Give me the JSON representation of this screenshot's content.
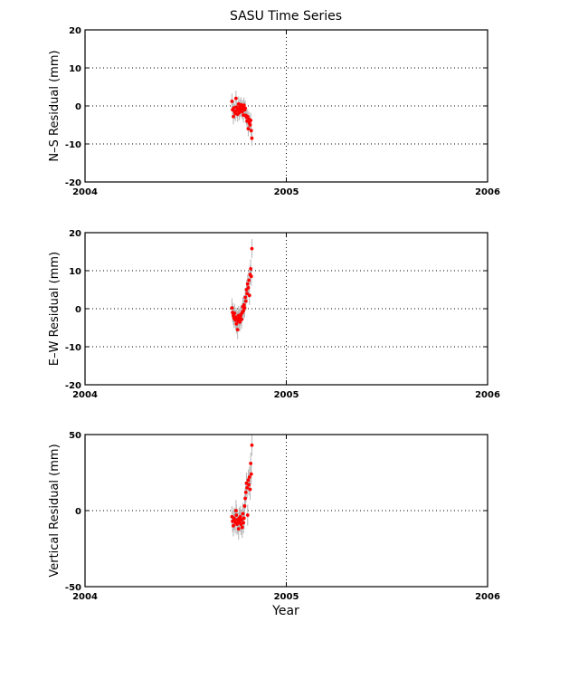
{
  "chart_data": {
    "title": "SASU Time Series",
    "xlabel": "Year",
    "type": "scatter",
    "panels": [
      {
        "type": "scatter",
        "ylabel": "N–S Residual (mm)",
        "xlim": [
          2004,
          2006
        ],
        "ylim": [
          -20,
          20
        ],
        "xticks": [
          2004,
          2005,
          2006
        ],
        "yticks": [
          -20,
          -10,
          0,
          10,
          20
        ],
        "grid": "dotted",
        "points": [
          {
            "x": 2004.73,
            "y": 1.2,
            "err": 2.0
          },
          {
            "x": 2004.733,
            "y": -1.0,
            "err": 2.0
          },
          {
            "x": 2004.737,
            "y": -2.8,
            "err": 2.0
          },
          {
            "x": 2004.74,
            "y": -0.5,
            "err": 2.0
          },
          {
            "x": 2004.743,
            "y": -1.5,
            "err": 2.0
          },
          {
            "x": 2004.747,
            "y": -2.0,
            "err": 2.0
          },
          {
            "x": 2004.75,
            "y": 2.0,
            "err": 2.0
          },
          {
            "x": 2004.752,
            "y": -0.3,
            "err": 2.0
          },
          {
            "x": 2004.755,
            "y": -1.2,
            "err": 2.0
          },
          {
            "x": 2004.758,
            "y": -2.2,
            "err": 2.0
          },
          {
            "x": 2004.76,
            "y": -0.8,
            "err": 2.0
          },
          {
            "x": 2004.763,
            "y": 0.5,
            "err": 2.0
          },
          {
            "x": 2004.766,
            "y": -1.8,
            "err": 2.0
          },
          {
            "x": 2004.769,
            "y": -0.2,
            "err": 2.0
          },
          {
            "x": 2004.772,
            "y": -1.0,
            "err": 2.0
          },
          {
            "x": 2004.775,
            "y": 0.3,
            "err": 2.0
          },
          {
            "x": 2004.778,
            "y": -0.8,
            "err": 2.0
          },
          {
            "x": 2004.781,
            "y": -1.5,
            "err": 2.0
          },
          {
            "x": 2004.784,
            "y": -0.4,
            "err": 2.0
          },
          {
            "x": 2004.787,
            "y": -2.4,
            "err": 2.0
          },
          {
            "x": 2004.79,
            "y": 0.2,
            "err": 2.0
          },
          {
            "x": 2004.793,
            "y": -1.0,
            "err": 2.0
          },
          {
            "x": 2004.796,
            "y": -0.6,
            "err": 2.0
          },
          {
            "x": 2004.799,
            "y": -2.5,
            "err": 2.0
          },
          {
            "x": 2004.802,
            "y": -3.0,
            "err": 2.0
          },
          {
            "x": 2004.805,
            "y": -4.0,
            "err": 2.0
          },
          {
            "x": 2004.808,
            "y": -2.8,
            "err": 2.0
          },
          {
            "x": 2004.811,
            "y": -6.0,
            "err": 2.0
          },
          {
            "x": 2004.814,
            "y": -3.5,
            "err": 2.0
          },
          {
            "x": 2004.817,
            "y": -4.5,
            "err": 2.0
          },
          {
            "x": 2004.82,
            "y": -5.0,
            "err": 2.0
          },
          {
            "x": 2004.823,
            "y": -3.8,
            "err": 2.0
          },
          {
            "x": 2004.826,
            "y": -6.5,
            "err": 2.0
          },
          {
            "x": 2004.829,
            "y": -8.5,
            "err": 2.0
          }
        ]
      },
      {
        "type": "scatter",
        "ylabel": "E–W Residual (mm)",
        "xlim": [
          2004,
          2006
        ],
        "ylim": [
          -20,
          20
        ],
        "xticks": [
          2004,
          2005,
          2006
        ],
        "yticks": [
          -20,
          -10,
          0,
          10,
          20
        ],
        "grid": "dotted",
        "points": [
          {
            "x": 2004.73,
            "y": 0.2,
            "err": 2.5
          },
          {
            "x": 2004.733,
            "y": -1.0,
            "err": 2.5
          },
          {
            "x": 2004.737,
            "y": -1.8,
            "err": 2.5
          },
          {
            "x": 2004.74,
            "y": -2.5,
            "err": 2.5
          },
          {
            "x": 2004.743,
            "y": -1.2,
            "err": 2.5
          },
          {
            "x": 2004.747,
            "y": -3.0,
            "err": 2.5
          },
          {
            "x": 2004.75,
            "y": -2.2,
            "err": 2.5
          },
          {
            "x": 2004.752,
            "y": -4.0,
            "err": 2.5
          },
          {
            "x": 2004.755,
            "y": -2.8,
            "err": 2.5
          },
          {
            "x": 2004.758,
            "y": -5.5,
            "err": 2.5
          },
          {
            "x": 2004.76,
            "y": -3.2,
            "err": 2.5
          },
          {
            "x": 2004.763,
            "y": -1.8,
            "err": 2.5
          },
          {
            "x": 2004.766,
            "y": -2.5,
            "err": 2.5
          },
          {
            "x": 2004.769,
            "y": -3.5,
            "err": 2.5
          },
          {
            "x": 2004.772,
            "y": -2.0,
            "err": 2.5
          },
          {
            "x": 2004.775,
            "y": -1.5,
            "err": 2.5
          },
          {
            "x": 2004.778,
            "y": -2.8,
            "err": 2.5
          },
          {
            "x": 2004.781,
            "y": -1.0,
            "err": 2.5
          },
          {
            "x": 2004.784,
            "y": 0.5,
            "err": 2.5
          },
          {
            "x": 2004.787,
            "y": -0.5,
            "err": 2.5
          },
          {
            "x": 2004.79,
            "y": 1.0,
            "err": 2.5
          },
          {
            "x": 2004.793,
            "y": 0.2,
            "err": 2.5
          },
          {
            "x": 2004.796,
            "y": 3.0,
            "err": 2.5
          },
          {
            "x": 2004.799,
            "y": 2.0,
            "err": 2.5
          },
          {
            "x": 2004.802,
            "y": 5.0,
            "err": 2.5
          },
          {
            "x": 2004.805,
            "y": 4.0,
            "err": 2.5
          },
          {
            "x": 2004.808,
            "y": 6.5,
            "err": 2.5
          },
          {
            "x": 2004.811,
            "y": 5.5,
            "err": 2.5
          },
          {
            "x": 2004.814,
            "y": 7.5,
            "err": 2.5
          },
          {
            "x": 2004.817,
            "y": 3.5,
            "err": 2.5
          },
          {
            "x": 2004.82,
            "y": 9.0,
            "err": 2.5
          },
          {
            "x": 2004.823,
            "y": 10.5,
            "err": 2.5
          },
          {
            "x": 2004.826,
            "y": 8.5,
            "err": 2.5
          },
          {
            "x": 2004.829,
            "y": 15.8,
            "err": 2.5
          }
        ]
      },
      {
        "type": "scatter",
        "ylabel": "Vertical Residual (mm)",
        "xlim": [
          2004,
          2006
        ],
        "ylim": [
          -50,
          50
        ],
        "xticks": [
          2004,
          2005,
          2006
        ],
        "yticks": [
          -50,
          0,
          50
        ],
        "grid": "dotted",
        "points": [
          {
            "x": 2004.73,
            "y": -4.0,
            "err": 7.0
          },
          {
            "x": 2004.733,
            "y": -7.0,
            "err": 7.0
          },
          {
            "x": 2004.737,
            "y": -10.0,
            "err": 7.0
          },
          {
            "x": 2004.74,
            "y": -5.0,
            "err": 7.0
          },
          {
            "x": 2004.743,
            "y": -6.0,
            "err": 7.0
          },
          {
            "x": 2004.747,
            "y": -8.0,
            "err": 7.0
          },
          {
            "x": 2004.75,
            "y": 0.0,
            "err": 7.0
          },
          {
            "x": 2004.752,
            "y": -3.0,
            "err": 7.0
          },
          {
            "x": 2004.755,
            "y": -9.0,
            "err": 7.0
          },
          {
            "x": 2004.758,
            "y": -6.0,
            "err": 7.0
          },
          {
            "x": 2004.76,
            "y": -8.0,
            "err": 7.0
          },
          {
            "x": 2004.763,
            "y": -12.0,
            "err": 7.0
          },
          {
            "x": 2004.766,
            "y": -5.0,
            "err": 7.0
          },
          {
            "x": 2004.769,
            "y": -7.0,
            "err": 7.0
          },
          {
            "x": 2004.772,
            "y": -4.0,
            "err": 7.0
          },
          {
            "x": 2004.775,
            "y": -9.0,
            "err": 7.0
          },
          {
            "x": 2004.778,
            "y": -6.0,
            "err": 7.0
          },
          {
            "x": 2004.781,
            "y": -11.0,
            "err": 7.0
          },
          {
            "x": 2004.784,
            "y": -2.0,
            "err": 7.0
          },
          {
            "x": 2004.787,
            "y": -8.0,
            "err": 7.0
          },
          {
            "x": 2004.79,
            "y": -5.0,
            "err": 7.0
          },
          {
            "x": 2004.793,
            "y": 3.0,
            "err": 7.0
          },
          {
            "x": 2004.796,
            "y": 8.0,
            "err": 7.0
          },
          {
            "x": 2004.799,
            "y": 12.0,
            "err": 7.0
          },
          {
            "x": 2004.802,
            "y": 18.0,
            "err": 7.0
          },
          {
            "x": 2004.805,
            "y": 15.0,
            "err": 7.0
          },
          {
            "x": 2004.808,
            "y": -3.0,
            "err": 7.0
          },
          {
            "x": 2004.811,
            "y": 20.0,
            "err": 7.0
          },
          {
            "x": 2004.814,
            "y": 17.0,
            "err": 7.0
          },
          {
            "x": 2004.817,
            "y": 22.0,
            "err": 7.0
          },
          {
            "x": 2004.82,
            "y": 14.0,
            "err": 7.0
          },
          {
            "x": 2004.823,
            "y": 31.0,
            "err": 7.0
          },
          {
            "x": 2004.826,
            "y": 24.0,
            "err": 7.0
          },
          {
            "x": 2004.829,
            "y": 43.0,
            "err": 7.0
          }
        ]
      }
    ]
  },
  "colors": {
    "point": "#ff0000",
    "errorbar": "#b4b4b4",
    "axes": "#000000",
    "grid": "#000000",
    "background": "#ffffff"
  }
}
